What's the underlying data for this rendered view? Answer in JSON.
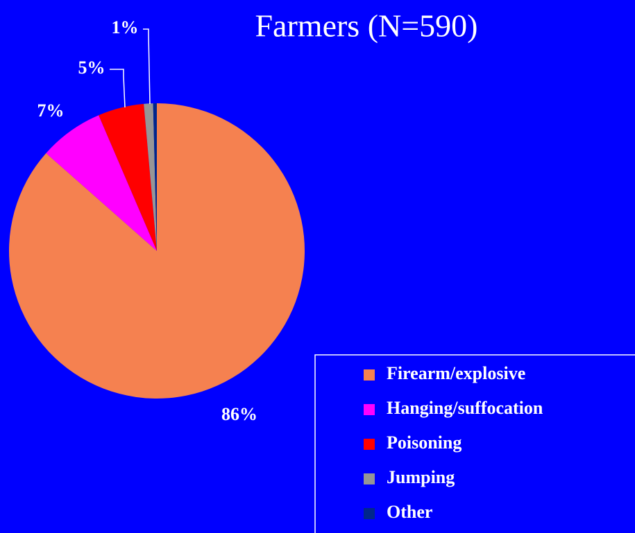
{
  "chart_data": {
    "type": "pie",
    "title": "Farmers (N=590)",
    "categories": [
      "Firearm/explosive",
      "Hanging/suffocation",
      "Poisoning",
      "Jumping",
      "Other"
    ],
    "values": [
      86,
      7,
      5,
      1,
      0.4
    ],
    "value_labels": [
      "86%",
      "7%",
      "5%",
      "1%",
      null
    ],
    "colors": [
      "#f58150",
      "#ff00ff",
      "#ff0000",
      "#969696",
      "#00268c"
    ],
    "legend": "lower right"
  }
}
